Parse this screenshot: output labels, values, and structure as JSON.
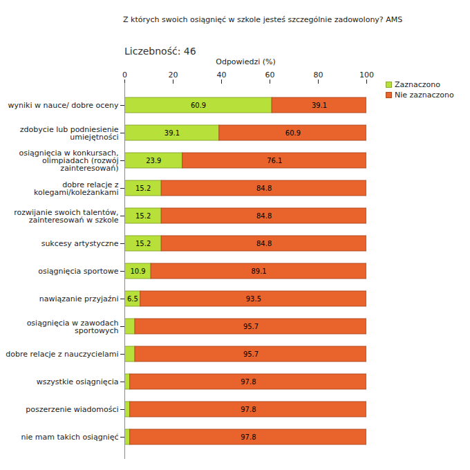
{
  "chart_data": {
    "type": "bar",
    "orientation": "horizontal",
    "stacked": true,
    "data_labels": true,
    "grid": false,
    "legend": "top-right",
    "title": "Z których swoich osiągnięć w szkole jesteś szczególnie zadowolony? AMS",
    "subtitle": "Liczebność: 46",
    "x_label": "Odpowiedzi (%)",
    "xlim": [
      0,
      100
    ],
    "xticks": [
      0,
      20,
      40,
      60,
      80,
      100
    ],
    "categories": [
      "wyniki w nauce/ dobre oceny",
      "zdobycie lub podniesienie\numiejętności",
      "osiągnięcia w konkursach,\nolimpiadach (rozwój\nzainteresowań)",
      "dobre relacje z\nkolegami/koleżankami",
      "rozwijanie swoich talentów,\nzainteresowań w szkole",
      "sukcesy artystyczne",
      "osiągnięcia sportowe",
      "nawiązanie przyjaźni",
      "osiągnięcia w zawodach\nsportowych",
      "dobre relacje z nauczycielami",
      "wszystkie osiągnięcia",
      "poszerzenie wiadomości",
      "nie mam takich osiągnięć"
    ],
    "series": [
      {
        "name": "Zaznaczono",
        "color": "#b8e03a",
        "values": [
          60.9,
          39.1,
          23.9,
          15.2,
          15.2,
          15.2,
          10.9,
          6.5,
          4.3,
          4.3,
          2.2,
          2.2,
          2.2
        ],
        "value_labels": [
          "60.9",
          "39.1",
          "23.9",
          "15.2",
          "15.2",
          "15.2",
          "10.9",
          "6.5",
          null,
          null,
          null,
          null,
          null
        ]
      },
      {
        "name": "Nie zaznaczono",
        "color": "#e8642c",
        "values": [
          39.1,
          60.9,
          76.1,
          84.8,
          84.8,
          84.8,
          89.1,
          93.5,
          95.7,
          95.7,
          97.8,
          97.8,
          97.8
        ]
      }
    ]
  }
}
